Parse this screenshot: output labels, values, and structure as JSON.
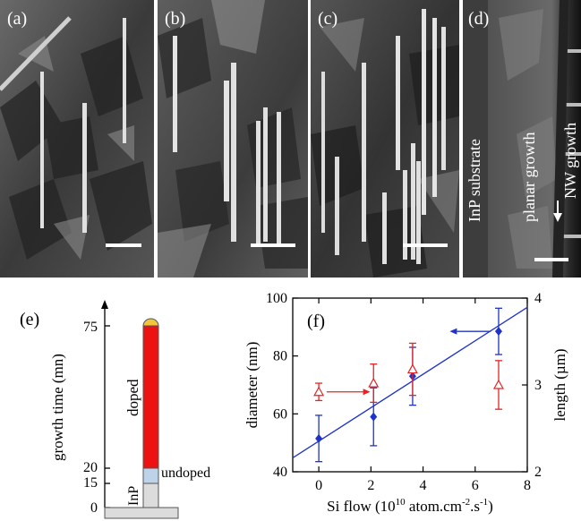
{
  "panels": {
    "a": {
      "label": "(a)"
    },
    "b": {
      "label": "(b)"
    },
    "c": {
      "label": "(c)"
    },
    "d": {
      "label": "(d)",
      "substrate": "InP substrate",
      "planar": "planar growth",
      "nw": "NW growth"
    }
  },
  "schematic": {
    "label": "(e)",
    "ylabel": "growth time (mn)",
    "ticks": [
      "75",
      "20",
      "15",
      "0"
    ],
    "doped": "doped",
    "undoped": "undoped",
    "inp": "InP",
    "colors": {
      "doped": "#ee1111",
      "undoped": "#bcd3ea",
      "inp": "#dcdcdc",
      "catalyst": "#f2c53d"
    }
  },
  "chart_data": {
    "type": "scatter",
    "label": "(f)",
    "xlabel_main": "Si flow (10",
    "xlabel_sup1": "10",
    "xlabel_mid": " atom.cm",
    "xlabel_sup2": "-2",
    "xlabel_mid2": ".s",
    "xlabel_sup3": "-1",
    "xlabel_end": ")",
    "ylabel_left": "diameter (nm)",
    "ylabel_right": "length (µm)",
    "xlim": [
      -1,
      8
    ],
    "ylim_left": [
      40,
      100
    ],
    "ylim_right": [
      2,
      4
    ],
    "x_ticks": [
      "0",
      "2",
      "4",
      "6",
      "8"
    ],
    "y_ticks_left": [
      "40",
      "60",
      "80",
      "100"
    ],
    "y_ticks_right": [
      "2",
      "3",
      "4"
    ],
    "series": [
      {
        "axis": "left",
        "color": "#1f33c8",
        "marker": "diamond",
        "x": [
          0,
          2.1,
          3.6,
          6.9
        ],
        "y": [
          51.5,
          59,
          73,
          88.5
        ],
        "err": [
          8,
          10,
          10,
          8
        ]
      },
      {
        "axis": "right",
        "color": "#e42424",
        "marker": "triangle",
        "x": [
          0,
          2.1,
          3.6,
          6.9
        ],
        "y": [
          2.92,
          3.02,
          3.18,
          3.0
        ],
        "err": [
          0.1,
          0.22,
          0.3,
          0.28
        ]
      }
    ],
    "fit_line": {
      "x": [
        -1,
        8
      ],
      "y": [
        44.8,
        96.8
      ],
      "color": "#1f33c8"
    }
  }
}
